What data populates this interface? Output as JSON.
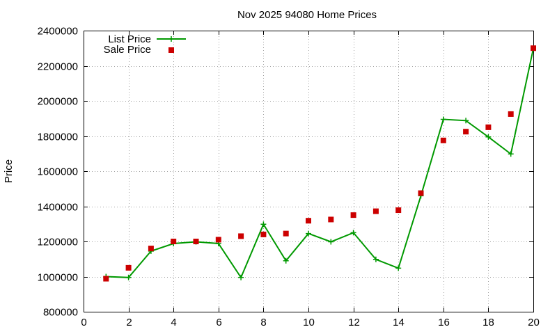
{
  "chart_data": {
    "type": "line",
    "title": "Nov 2025 94080 Home Prices",
    "xlabel": "",
    "ylabel": "Price",
    "xlim": [
      0,
      20
    ],
    "ylim": [
      800000,
      2400000
    ],
    "xticks": [
      0,
      2,
      4,
      6,
      8,
      10,
      12,
      14,
      16,
      18,
      20
    ],
    "yticks": [
      800000,
      1000000,
      1200000,
      1400000,
      1600000,
      1800000,
      2000000,
      2200000,
      2400000
    ],
    "grid": true,
    "legend_position": "top-left",
    "x": [
      1,
      2,
      3,
      4,
      5,
      6,
      7,
      8,
      9,
      10,
      11,
      12,
      13,
      14,
      15,
      16,
      17,
      18,
      19,
      20
    ],
    "series": [
      {
        "name": "List Price",
        "style": "line-with-plus-markers",
        "color": "#009900",
        "values": [
          1000000,
          995000,
          1145000,
          1188000,
          1198000,
          1188000,
          995000,
          1298000,
          1090000,
          1245000,
          1198000,
          1250000,
          1098000,
          1048000,
          1460000,
          1895000,
          1888000,
          1795000,
          1698000,
          2298000
        ]
      },
      {
        "name": "Sale Price",
        "style": "square-markers",
        "color": "#cc0000",
        "values": [
          988000,
          1050000,
          1160000,
          1200000,
          1200000,
          1210000,
          1230000,
          1240000,
          1245000,
          1318000,
          1325000,
          1350000,
          1372000,
          1378000,
          1475000,
          1775000,
          1825000,
          1850000,
          1925000,
          2300000
        ]
      }
    ]
  }
}
